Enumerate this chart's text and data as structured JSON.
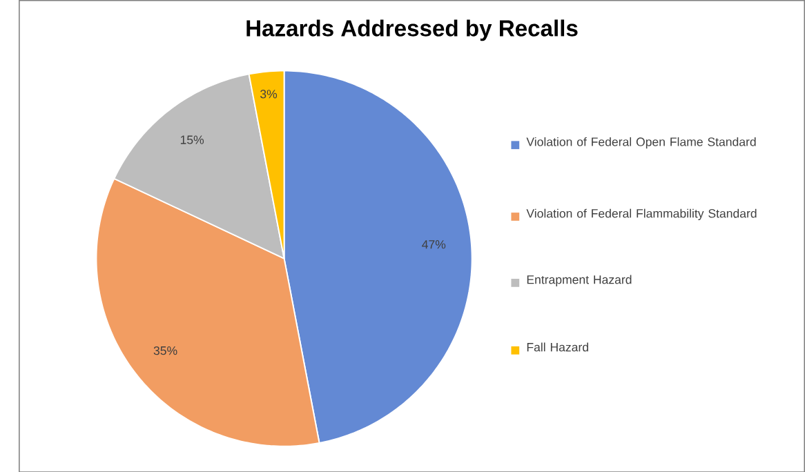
{
  "chart_data": {
    "type": "pie",
    "title": "Hazards Addressed by Recalls",
    "categories": [
      "Violation of Federal Open Flame Standard",
      "Violation of Federal Flammability Standard",
      "Entrapment Hazard",
      "Fall Hazard"
    ],
    "values": [
      47,
      35,
      15,
      3
    ],
    "colors": [
      "#6389d4",
      "#f29d62",
      "#bdbdbd",
      "#ffc000"
    ],
    "value_labels": [
      "47%",
      "35%",
      "15%",
      "3%"
    ],
    "legend": "right"
  }
}
